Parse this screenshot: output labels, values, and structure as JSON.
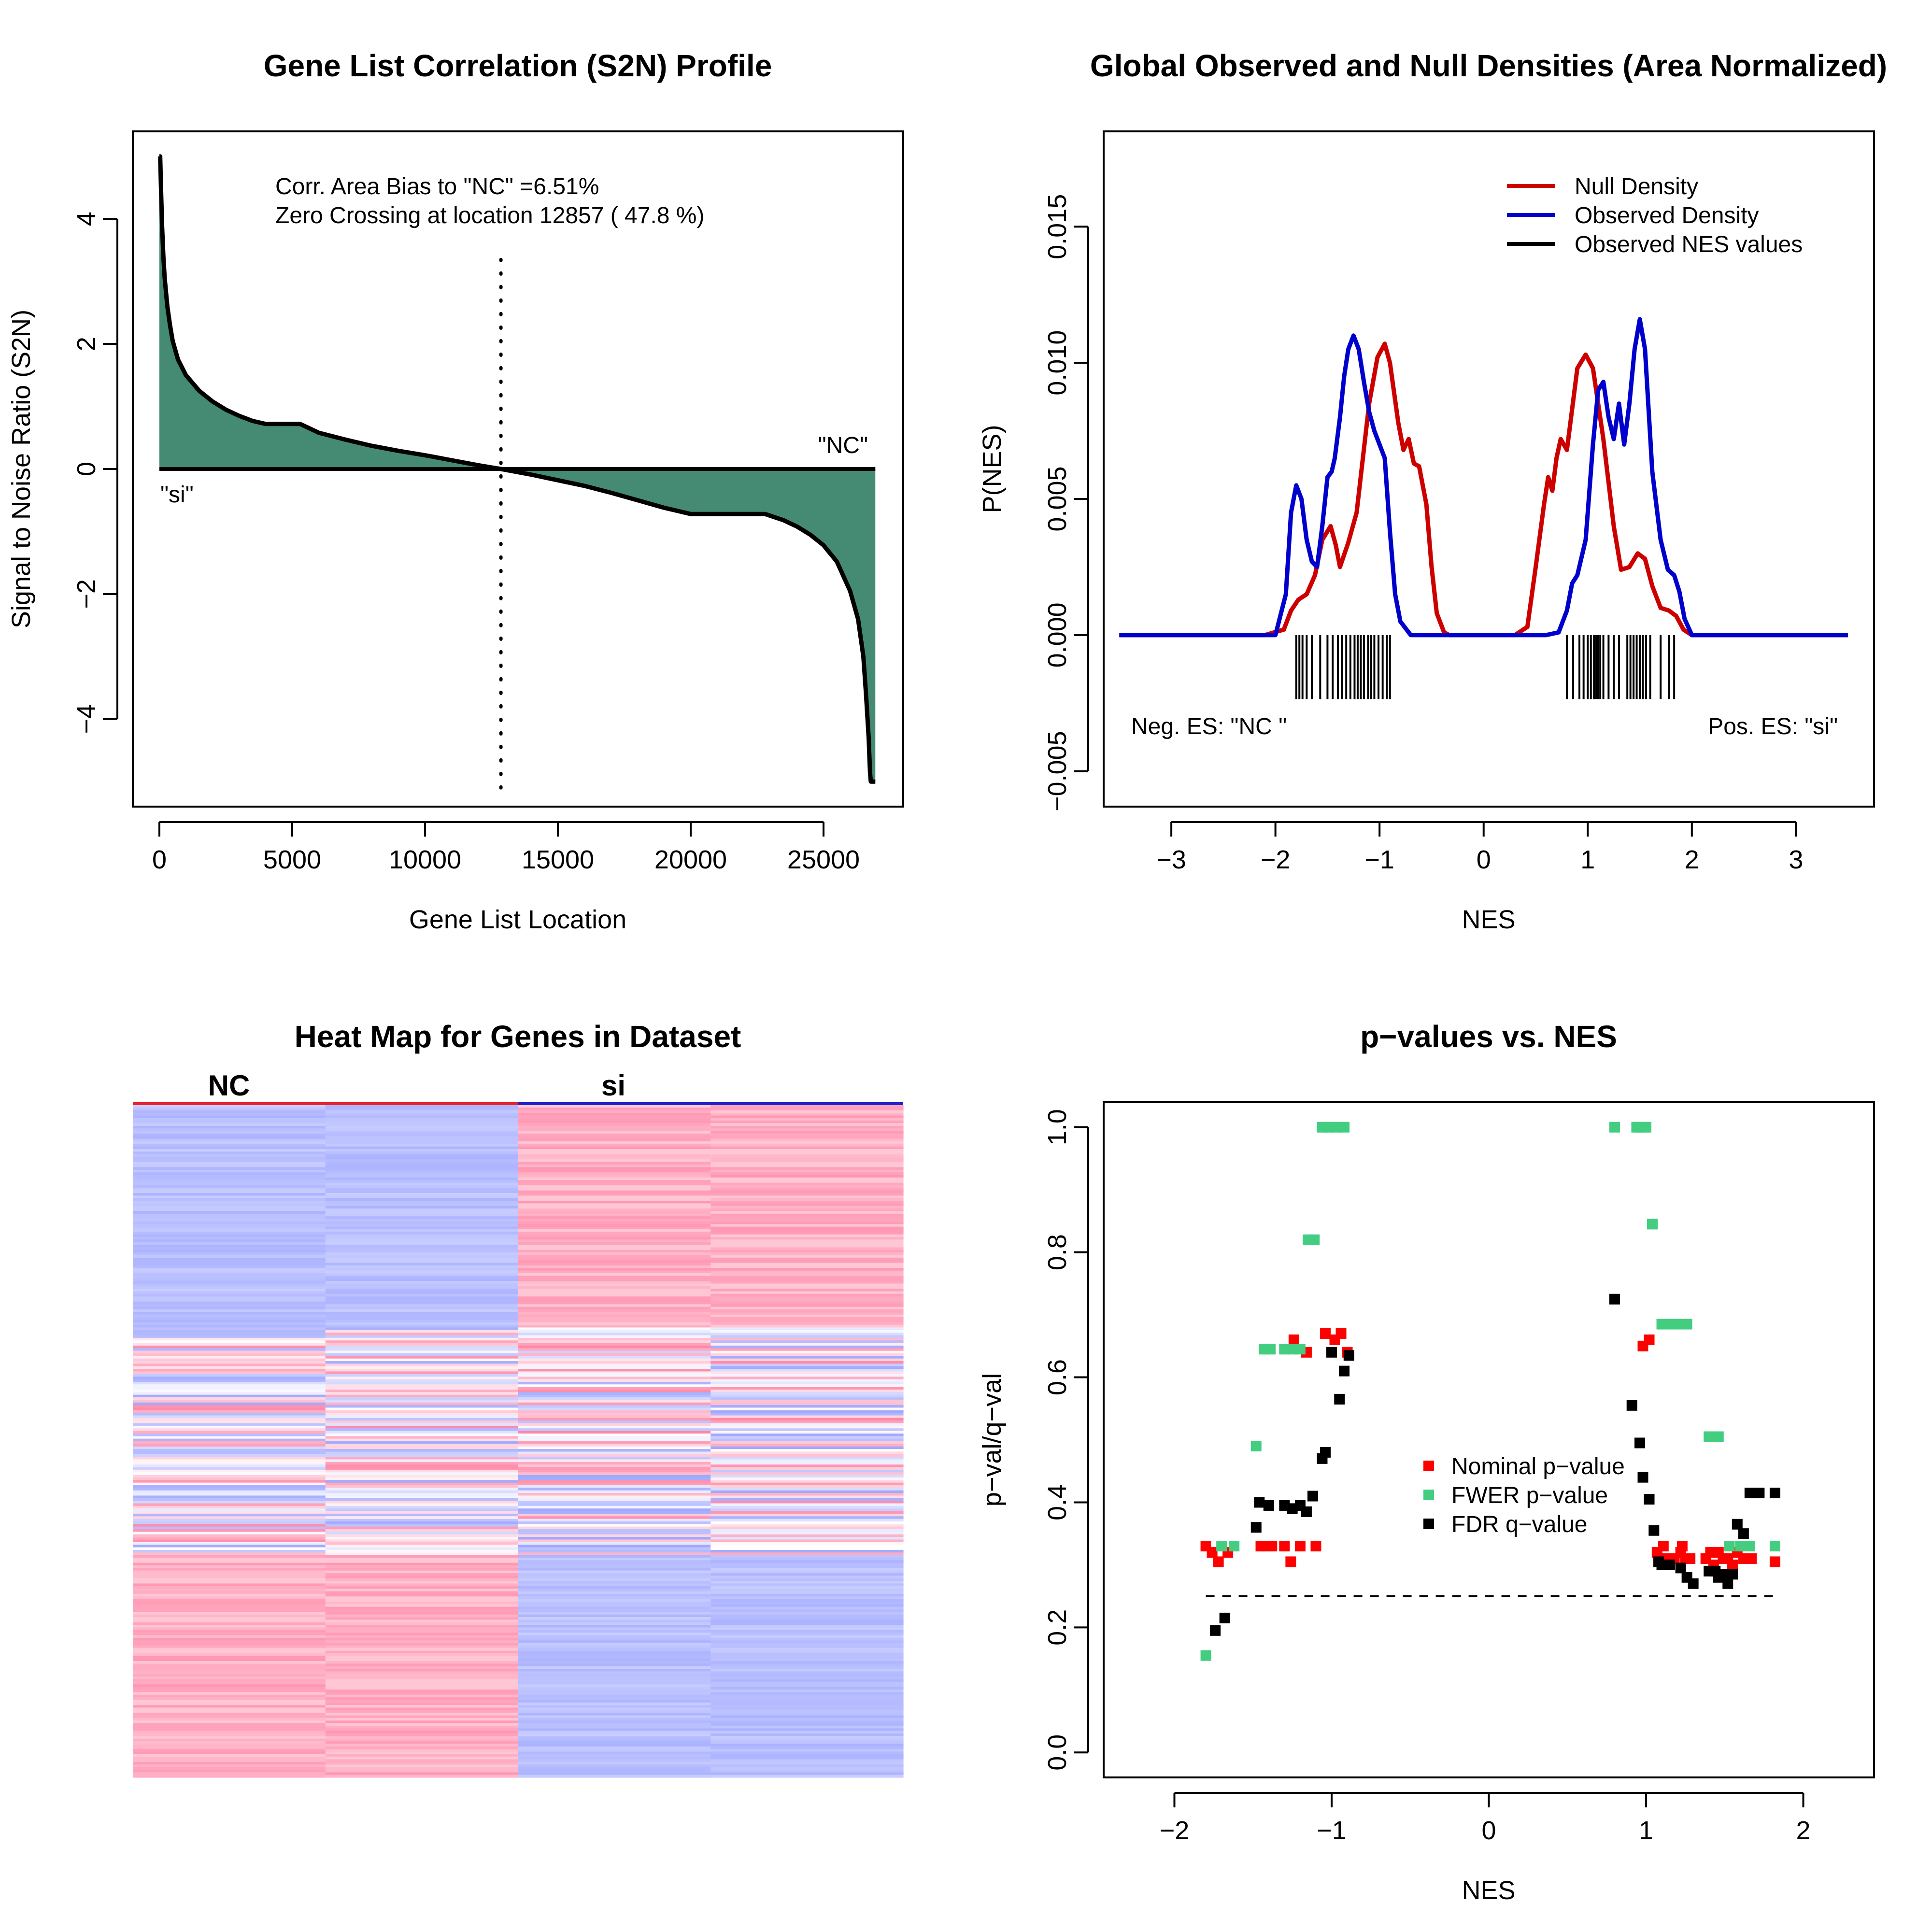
{
  "chart_data": [
    {
      "type": "area",
      "title": "Gene List Correlation (S2N) Profile",
      "xlabel": "Gene List Location",
      "ylabel": "Signal to Noise Ratio (S2N)",
      "xlim": [
        -1000,
        28000
      ],
      "ylim": [
        -5.4,
        5.4
      ],
      "xticks": [
        0,
        5000,
        10000,
        15000,
        20000,
        25000
      ],
      "xtick_labels": [
        "0",
        "5000",
        "10000",
        "15000",
        "20000",
        "25000"
      ],
      "yticks": [
        -4,
        -2,
        0,
        2,
        4
      ],
      "ytick_labels": [
        "−4",
        "−2",
        "0",
        "2",
        "4"
      ],
      "fill_color": "#458B74",
      "x": [
        0,
        30,
        60,
        100,
        150,
        200,
        300,
        400,
        500,
        700,
        1000,
        1500,
        2000,
        2500,
        3000,
        3500,
        4000,
        4500,
        5000,
        5300,
        5500,
        6000,
        7000,
        8000,
        9000,
        10000,
        11000,
        12000,
        12857,
        14000,
        15000,
        16000,
        17000,
        18000,
        19000,
        20000,
        21000,
        22000,
        22800,
        23500,
        24000,
        24500,
        25000,
        25500,
        26000,
        26300,
        26500,
        26600,
        26700,
        26750,
        26780,
        26800,
        26850,
        26900,
        26950
      ],
      "y": [
        5.0,
        5.0,
        4.5,
        3.9,
        3.4,
        3.05,
        2.6,
        2.3,
        2.05,
        1.75,
        1.5,
        1.25,
        1.08,
        0.95,
        0.85,
        0.77,
        0.72,
        0.72,
        0.72,
        0.72,
        0.68,
        0.58,
        0.47,
        0.37,
        0.29,
        0.22,
        0.14,
        0.06,
        0.0,
        -0.09,
        -0.18,
        -0.27,
        -0.38,
        -0.5,
        -0.62,
        -0.72,
        -0.72,
        -0.72,
        -0.72,
        -0.82,
        -0.92,
        -1.05,
        -1.22,
        -1.48,
        -1.95,
        -2.4,
        -3.0,
        -3.6,
        -4.3,
        -4.85,
        -5.0,
        -5.0,
        -5.0,
        -5.0,
        -5.0
      ],
      "zero_crossing_x": 12857,
      "annotations": [
        "Corr. Area Bias to \"NC\" =6.51%",
        "Zero Crossing at location  12857  ( 47.8  %)"
      ],
      "label_top_right": "\"NC\"",
      "label_bottom_left": "\"si\""
    },
    {
      "type": "line",
      "title": "Global Observed and Null Densities (Area Normalized)",
      "xlabel": "NES",
      "ylabel": "P(NES)",
      "xlim": [
        -3.65,
        3.75
      ],
      "ylim": [
        -0.0063,
        0.0185
      ],
      "xticks": [
        -3,
        -2,
        -1,
        0,
        1,
        2,
        3
      ],
      "xtick_labels": [
        "−3",
        "−2",
        "−1",
        "0",
        "1",
        "2",
        "3"
      ],
      "yticks": [
        -0.005,
        0.0,
        0.005,
        0.01,
        0.015
      ],
      "ytick_labels": [
        "−0.005",
        "0.000",
        "0.005",
        "0.010",
        "0.015"
      ],
      "series": [
        {
          "name": "Null Density",
          "color": "#CD0000",
          "x": [
            -3.5,
            -2.1,
            -1.92,
            -1.85,
            -1.78,
            -1.7,
            -1.62,
            -1.55,
            -1.47,
            -1.42,
            -1.38,
            -1.3,
            -1.22,
            -1.1,
            -1.02,
            -0.95,
            -0.9,
            -0.82,
            -0.77,
            -0.72,
            -0.67,
            -0.62,
            -0.55,
            -0.5,
            -0.45,
            -0.38,
            -0.33,
            0.3,
            0.42,
            0.5,
            0.58,
            0.62,
            0.66,
            0.7,
            0.74,
            0.8,
            0.9,
            0.98,
            1.05,
            1.15,
            1.25,
            1.32,
            1.4,
            1.48,
            1.55,
            1.62,
            1.7,
            1.78,
            1.85,
            1.92,
            2.0,
            3.5
          ],
          "y": [
            0.0,
            0.0,
            0.0002,
            0.0009,
            0.0013,
            0.0015,
            0.0022,
            0.0035,
            0.004,
            0.0033,
            0.0025,
            0.0034,
            0.0045,
            0.0085,
            0.0102,
            0.0107,
            0.01,
            0.0078,
            0.0068,
            0.0072,
            0.0063,
            0.0062,
            0.0048,
            0.0025,
            0.0008,
            0.0001,
            0.0,
            0.0,
            0.0003,
            0.0025,
            0.0048,
            0.0058,
            0.0053,
            0.0065,
            0.0072,
            0.0068,
            0.0098,
            0.0103,
            0.0098,
            0.0072,
            0.004,
            0.0024,
            0.0025,
            0.003,
            0.0028,
            0.0018,
            0.001,
            0.0009,
            0.0007,
            0.0002,
            0.0,
            0.0
          ]
        },
        {
          "name": "Observed Density",
          "color": "#0000CD",
          "x": [
            -3.5,
            -2.0,
            -1.9,
            -1.85,
            -1.8,
            -1.75,
            -1.7,
            -1.65,
            -1.6,
            -1.55,
            -1.5,
            -1.46,
            -1.43,
            -1.38,
            -1.34,
            -1.3,
            -1.25,
            -1.2,
            -1.15,
            -1.1,
            -1.05,
            -1.0,
            -0.95,
            -0.9,
            -0.85,
            -0.8,
            -0.7,
            0.6,
            0.72,
            0.8,
            0.85,
            0.9,
            0.98,
            1.05,
            1.1,
            1.15,
            1.2,
            1.25,
            1.3,
            1.35,
            1.4,
            1.45,
            1.5,
            1.55,
            1.62,
            1.7,
            1.77,
            1.83,
            1.88,
            1.93,
            2.0,
            3.5
          ],
          "y": [
            0.0,
            0.0,
            0.0015,
            0.0045,
            0.0055,
            0.005,
            0.0035,
            0.0027,
            0.0025,
            0.004,
            0.0058,
            0.006,
            0.0065,
            0.008,
            0.0095,
            0.0105,
            0.011,
            0.0105,
            0.0093,
            0.0082,
            0.0075,
            0.007,
            0.0065,
            0.0038,
            0.0015,
            0.0005,
            0.0,
            0.0,
            0.0001,
            0.0009,
            0.0019,
            0.0022,
            0.0035,
            0.007,
            0.009,
            0.0093,
            0.008,
            0.0072,
            0.0085,
            0.007,
            0.0085,
            0.0105,
            0.0116,
            0.0105,
            0.006,
            0.0035,
            0.0024,
            0.0022,
            0.0016,
            0.0006,
            0.0,
            0.0
          ]
        },
        {
          "name": "Observed NES values",
          "color": "#000000",
          "x": [
            -1.8,
            -1.77,
            -1.74,
            -1.7,
            -1.65,
            -1.57,
            -1.5,
            -1.45,
            -1.4,
            -1.36,
            -1.32,
            -1.28,
            -1.24,
            -1.21,
            -1.18,
            -1.15,
            -1.11,
            -1.08,
            -1.05,
            -1.01,
            -0.97,
            -0.93,
            -0.9,
            0.8,
            0.86,
            0.92,
            0.96,
            1.0,
            1.03,
            1.06,
            1.08,
            1.1,
            1.12,
            1.15,
            1.2,
            1.25,
            1.3,
            1.38,
            1.41,
            1.44,
            1.47,
            1.5,
            1.53,
            1.56,
            1.6,
            1.7,
            1.78,
            1.83
          ]
        }
      ],
      "legend_entries": [
        "Null Density",
        "Observed Density",
        "Observed NES values"
      ],
      "legend_position": "top-right",
      "annotations": [
        "Neg. ES: \"NC \"",
        "Pos. ES: \"si\""
      ]
    },
    {
      "type": "heatmap",
      "title": "Heat Map for Genes in Dataset",
      "column_groups": [
        "NC",
        "si"
      ],
      "group_colors": [
        "#E8222E",
        "#2222CC"
      ],
      "columns": 4,
      "rows": 260,
      "blocks": [
        {
          "from": 0.0,
          "to": 0.33,
          "values": [
            -0.55,
            -0.55,
            0.55,
            0.55
          ]
        },
        {
          "from": 0.33,
          "to": 0.67,
          "values": [
            0.0,
            0.0,
            0.0,
            0.0
          ]
        },
        {
          "from": 0.67,
          "to": 1.0,
          "values": [
            0.55,
            0.55,
            -0.55,
            -0.55
          ]
        }
      ]
    },
    {
      "type": "scatter",
      "title": "p−values vs. NES",
      "xlabel": "NES",
      "ylabel": "p−val/q−val",
      "xlim": [
        -2.45,
        2.45
      ],
      "ylim": [
        -0.04,
        1.04
      ],
      "xticks": [
        -2,
        -1,
        0,
        1,
        2
      ],
      "xtick_labels": [
        "−2",
        "−1",
        "0",
        "1",
        "2"
      ],
      "yticks": [
        0.0,
        0.2,
        0.4,
        0.6,
        0.8,
        1.0
      ],
      "ytick_labels": [
        "0.0",
        "0.2",
        "0.4",
        "0.6",
        "0.8",
        "1.0"
      ],
      "threshold": 0.25,
      "threshold_xrange": [
        -1.8,
        1.83
      ],
      "series": [
        {
          "name": "Nominal p−value",
          "color": "#FF0000",
          "x": [
            -1.8,
            -1.76,
            -1.72,
            -1.66,
            -1.45,
            -1.42,
            -1.38,
            -1.3,
            -1.26,
            -1.2,
            -1.1,
            -1.24,
            -1.16,
            -1.04,
            -0.98,
            -0.94,
            -0.9,
            0.98,
            1.02,
            1.07,
            1.09,
            1.11,
            1.14,
            1.18,
            1.22,
            1.23,
            1.25,
            1.28,
            1.38,
            1.41,
            1.43,
            1.46,
            1.49,
            1.52,
            1.55,
            1.58,
            1.62,
            1.67,
            1.82
          ],
          "y": [
            0.33,
            0.32,
            0.305,
            0.32,
            0.33,
            0.33,
            0.33,
            0.33,
            0.305,
            0.33,
            0.33,
            0.66,
            0.64,
            0.67,
            0.66,
            0.67,
            0.64,
            0.65,
            0.66,
            0.32,
            0.31,
            0.33,
            0.31,
            0.31,
            0.32,
            0.33,
            0.31,
            0.31,
            0.31,
            0.32,
            0.3,
            0.32,
            0.31,
            0.31,
            0.3,
            0.32,
            0.31,
            0.31,
            0.305
          ]
        },
        {
          "name": "FWER p−value",
          "color": "#43CD80",
          "x": [
            -1.8,
            -1.7,
            -1.62,
            -1.48,
            -1.43,
            -1.39,
            -1.3,
            -1.25,
            -1.2,
            -1.15,
            -1.11,
            -1.06,
            -1.02,
            -0.97,
            -0.92,
            0.8,
            0.94,
            0.97,
            1.0,
            1.04,
            1.1,
            1.14,
            1.2,
            1.26,
            1.4,
            1.46,
            1.53,
            1.6,
            1.66,
            1.82
          ],
          "y": [
            0.155,
            0.33,
            0.33,
            0.49,
            0.645,
            0.645,
            0.645,
            0.645,
            0.645,
            0.82,
            0.82,
            1.0,
            1.0,
            1.0,
            1.0,
            1.0,
            1.0,
            1.0,
            1.0,
            0.845,
            0.685,
            0.685,
            0.685,
            0.685,
            0.505,
            0.505,
            0.33,
            0.33,
            0.33,
            0.33
          ]
        },
        {
          "name": "FDR q−value",
          "color": "#000000",
          "x": [
            -1.74,
            -1.68,
            -1.48,
            -1.46,
            -1.4,
            -1.3,
            -1.25,
            -1.2,
            -1.16,
            -1.12,
            -1.06,
            -1.04,
            -1.0,
            -0.95,
            -0.92,
            -0.89,
            0.8,
            0.91,
            0.96,
            0.98,
            1.02,
            1.05,
            1.08,
            1.1,
            1.15,
            1.22,
            1.26,
            1.3,
            1.4,
            1.44,
            1.46,
            1.49,
            1.52,
            1.55,
            1.58,
            1.62,
            1.66,
            1.72,
            1.82
          ],
          "y": [
            0.195,
            0.215,
            0.36,
            0.4,
            0.395,
            0.395,
            0.39,
            0.395,
            0.385,
            0.41,
            0.47,
            0.48,
            0.64,
            0.565,
            0.61,
            0.635,
            0.725,
            0.555,
            0.495,
            0.44,
            0.405,
            0.355,
            0.305,
            0.3,
            0.3,
            0.295,
            0.28,
            0.27,
            0.29,
            0.29,
            0.28,
            0.285,
            0.27,
            0.285,
            0.365,
            0.35,
            0.415,
            0.415,
            0.415
          ]
        }
      ],
      "legend_entries": [
        "Nominal p−value",
        "FWER p−value",
        "FDR q−value"
      ],
      "legend_position": "center"
    }
  ]
}
